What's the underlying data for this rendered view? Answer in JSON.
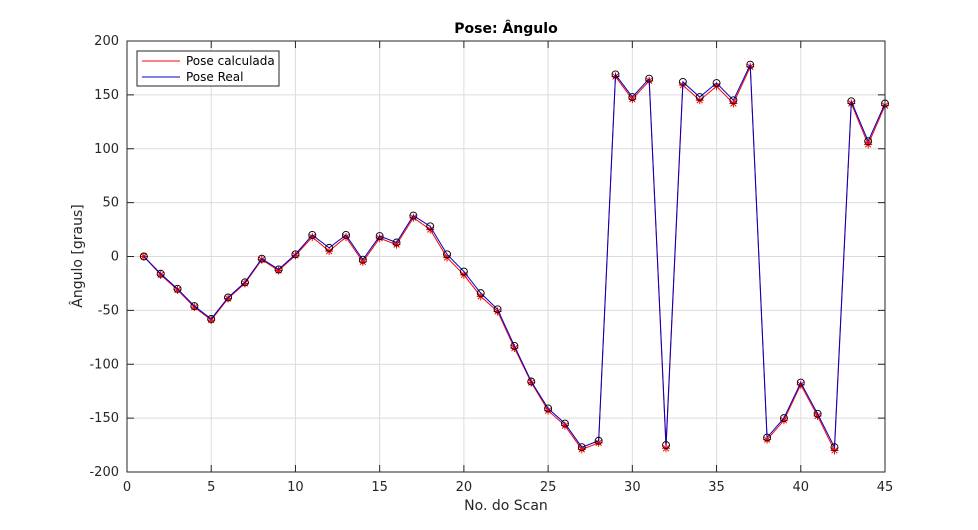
{
  "chart_data": {
    "type": "line",
    "title": "Pose: Ângulo",
    "xlabel": "No. do Scan",
    "ylabel": "Ângulo [graus]",
    "xlim": [
      0,
      45
    ],
    "ylim": [
      -200,
      200
    ],
    "xticks": [
      0,
      5,
      10,
      15,
      20,
      25,
      30,
      35,
      40,
      45
    ],
    "yticks": [
      -200,
      -150,
      -100,
      -50,
      0,
      50,
      100,
      150,
      200
    ],
    "grid": true,
    "legend_placement": "top-left",
    "x": [
      1,
      2,
      3,
      4,
      5,
      6,
      7,
      8,
      9,
      10,
      11,
      12,
      13,
      14,
      15,
      16,
      17,
      18,
      19,
      20,
      21,
      22,
      23,
      24,
      25,
      26,
      27,
      28,
      29,
      30,
      31,
      32,
      33,
      34,
      35,
      36,
      37,
      38,
      39,
      40,
      41,
      42,
      43,
      44,
      45
    ],
    "series": [
      {
        "name": "Pose calculada",
        "color": "#ff0000",
        "marker": "asterisk",
        "values": [
          0,
          -17,
          -31,
          -47,
          -59,
          -39,
          -25,
          -3,
          -13,
          1,
          18,
          5,
          18,
          -5,
          17,
          11,
          36,
          25,
          -1,
          -17,
          -37,
          -51,
          -85,
          -117,
          -143,
          -157,
          -179,
          -173,
          167,
          146,
          163,
          -178,
          159,
          145,
          158,
          142,
          176,
          -170,
          -152,
          -119,
          -148,
          -180,
          142,
          104,
          140
        ]
      },
      {
        "name": "Pose Real",
        "color": "#0000cc",
        "marker": "circle",
        "values": [
          0,
          -16,
          -30,
          -46,
          -58,
          -38,
          -24,
          -2,
          -12,
          2,
          20,
          8,
          20,
          -3,
          19,
          13,
          38,
          28,
          2,
          -14,
          -34,
          -49,
          -83,
          -116,
          -141,
          -155,
          -177,
          -171,
          169,
          148,
          165,
          -175,
          162,
          148,
          161,
          145,
          178,
          -168,
          -150,
          -117,
          -146,
          -177,
          144,
          107,
          142
        ]
      }
    ]
  }
}
